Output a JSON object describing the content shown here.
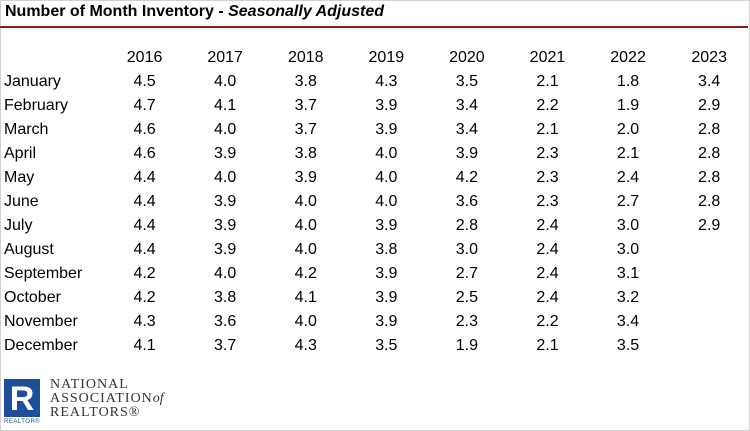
{
  "title": {
    "main": "Number of Month Inventory - ",
    "sub": "Seasonally Adjusted"
  },
  "logo": {
    "line1": "NATIONAL",
    "line2": "ASSOCIATION",
    "of": "of",
    "line3": "REALTORS®",
    "tag": "REALTOR®",
    "letter": "R",
    "color": "#1f4e9a"
  },
  "chart_data": {
    "type": "table",
    "title": "Number of Month Inventory - Seasonally Adjusted",
    "columns": [
      "2016",
      "2017",
      "2018",
      "2019",
      "2020",
      "2021",
      "2022",
      "2023"
    ],
    "rows": [
      {
        "label": "January",
        "values": [
          "4.5",
          "4.0",
          "3.8",
          "4.3",
          "3.5",
          "2.1",
          "1.8",
          "3.4"
        ]
      },
      {
        "label": "February",
        "values": [
          "4.7",
          "4.1",
          "3.7",
          "3.9",
          "3.4",
          "2.2",
          "1.9",
          "2.9"
        ]
      },
      {
        "label": "March",
        "values": [
          "4.6",
          "4.0",
          "3.7",
          "3.9",
          "3.4",
          "2.1",
          "2.0",
          "2.8"
        ]
      },
      {
        "label": "April",
        "values": [
          "4.6",
          "3.9",
          "3.8",
          "4.0",
          "3.9",
          "2.3",
          "2.1",
          "2.8"
        ]
      },
      {
        "label": "May",
        "values": [
          "4.4",
          "4.0",
          "3.9",
          "4.0",
          "4.2",
          "2.3",
          "2.4",
          "2.8"
        ]
      },
      {
        "label": "June",
        "values": [
          "4.4",
          "3.9",
          "4.0",
          "4.0",
          "3.6",
          "2.3",
          "2.7",
          "2.8"
        ]
      },
      {
        "label": "July",
        "values": [
          "4.4",
          "3.9",
          "4.0",
          "3.9",
          "2.8",
          "2.4",
          "3.0",
          "2.9"
        ]
      },
      {
        "label": "August",
        "values": [
          "4.4",
          "3.9",
          "4.0",
          "3.8",
          "3.0",
          "2.4",
          "3.0",
          ""
        ]
      },
      {
        "label": "September",
        "values": [
          "4.2",
          "4.0",
          "4.2",
          "3.9",
          "2.7",
          "2.4",
          "3.1",
          ""
        ]
      },
      {
        "label": "October",
        "values": [
          "4.2",
          "3.8",
          "4.1",
          "3.9",
          "2.5",
          "2.4",
          "3.2",
          ""
        ]
      },
      {
        "label": "November",
        "values": [
          "4.3",
          "3.6",
          "4.0",
          "3.9",
          "2.3",
          "2.2",
          "3.4",
          ""
        ]
      },
      {
        "label": "December",
        "values": [
          "4.1",
          "3.7",
          "4.3",
          "3.5",
          "1.9",
          "2.1",
          "3.5",
          ""
        ]
      }
    ]
  }
}
